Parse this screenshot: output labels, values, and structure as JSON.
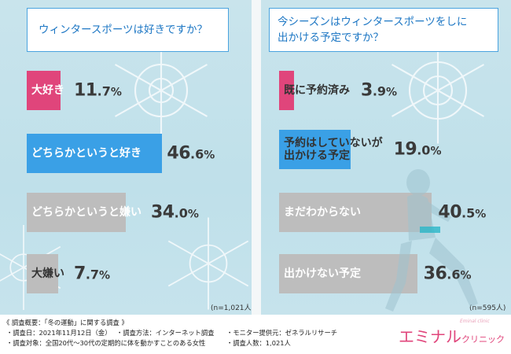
{
  "chart_data": [
    {
      "type": "bar",
      "title": "ウィンタースポーツは好きですか？",
      "categories": [
        "大好き",
        "どちらかというと好き",
        "どちらかというと嫌い",
        "大嫌い"
      ],
      "values": [
        11.7,
        46.6,
        34.0,
        7.7
      ],
      "value_labels": [
        {
          "int": "11",
          "dec": "7"
        },
        {
          "int": "46",
          "dec": "6"
        },
        {
          "int": "34",
          "dec": "0"
        },
        {
          "int": "7",
          "dec": "7"
        }
      ],
      "unit": "%",
      "colors": [
        "#e0457b",
        "#3aa0e6",
        "#bdbdbd",
        "#bdbdbd"
      ],
      "label_colors": [
        "#ffffff",
        "#ffffff",
        "#ffffff",
        "#333333"
      ],
      "n_note": "(n=1,021人)"
    },
    {
      "type": "bar",
      "title_lines": [
        "今シーズンはウィンタースポーツをしに",
        "出かける予定ですか？"
      ],
      "categories": [
        [
          "既に予約済み"
        ],
        [
          "予約はしていないが",
          "出かける予定"
        ],
        [
          "まだわからない"
        ],
        [
          "出かけない予定"
        ]
      ],
      "values": [
        3.9,
        19.0,
        40.5,
        36.6
      ],
      "value_labels": [
        {
          "int": "3",
          "dec": "9"
        },
        {
          "int": "19",
          "dec": "0"
        },
        {
          "int": "40",
          "dec": "5"
        },
        {
          "int": "36",
          "dec": "6"
        }
      ],
      "unit": "%",
      "colors": [
        "#e0457b",
        "#3aa0e6",
        "#bdbdbd",
        "#bdbdbd"
      ],
      "label_colors": [
        "#333333",
        "#333333",
        "#ffffff",
        "#ffffff"
      ],
      "n_note": "(n=595人)"
    }
  ],
  "footer": {
    "summary": "《 調査概要：「冬の運動」に関する調査 》",
    "date": "・調査日：2021年11月12日（金）",
    "method": "・調査方法：インターネット調査",
    "provider": "・モニター提供元：ゼネラルリサーチ",
    "target": "・調査対象：全国20代～30代の定期的に体を動かすことのある女性",
    "count": "・調査人数：1,021人"
  },
  "brand": {
    "main": "エミナル",
    "sub": "クリニック",
    "script": "Eminal clinic"
  }
}
